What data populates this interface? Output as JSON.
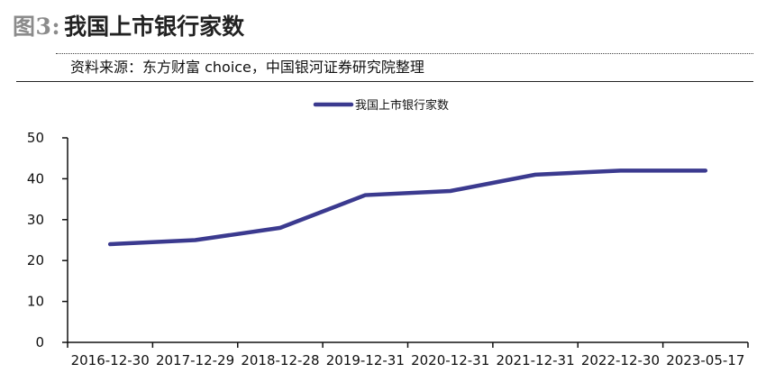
{
  "header": {
    "figure_prefix": "图3:",
    "figure_title": "我国上市银行家数",
    "source": "资料来源：东方财富 choice，中国银河证券研究院整理"
  },
  "colors": {
    "series_line": "#3b3a8f",
    "axis": "#111111"
  },
  "chart_data": {
    "type": "line",
    "title": "",
    "xlabel": "",
    "ylabel": "",
    "categories": [
      "2016-12-30",
      "2017-12-29",
      "2018-12-28",
      "2019-12-31",
      "2020-12-31",
      "2021-12-31",
      "2022-12-30",
      "2023-05-17"
    ],
    "series": [
      {
        "name": "我国上市银行家数",
        "values": [
          24,
          25,
          28,
          36,
          37,
          41,
          42,
          42
        ]
      }
    ],
    "ylim": [
      0,
      50
    ],
    "yticks": [
      0,
      10,
      20,
      30,
      40,
      50
    ],
    "grid": false,
    "legend_position": "top-center"
  }
}
